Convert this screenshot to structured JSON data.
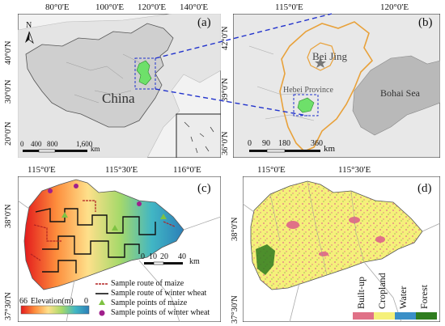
{
  "panel_a": {
    "letter": "(a)",
    "top_lon_labels": [
      "80°0'E",
      "100°0'E",
      "120°0'E",
      "140°0'E"
    ],
    "lat_labels": [
      "40°0'N",
      "30°0'N",
      "20°0'N"
    ],
    "country_label": "China",
    "north_label": "N",
    "scale_ticks": [
      "0",
      "400",
      "800",
      "1,600"
    ],
    "scale_unit": "km"
  },
  "panel_b": {
    "letter": "(b)",
    "top_lon_labels": [
      "115°0'E",
      "120°0'E"
    ],
    "lat_labels": [
      "42°0'N",
      "39°0'N",
      "36°0'N"
    ],
    "capital_label": "Bei Jing",
    "province_label": "Hebei Province",
    "sea_label": "Bohai Sea",
    "scale_ticks": [
      "0",
      "90",
      "180",
      "360"
    ],
    "scale_unit": "km"
  },
  "panel_c": {
    "letter": "(c)",
    "top_lon_labels": [
      "115°0'E",
      "115°30'E",
      "116°0'E"
    ],
    "lat_labels": [
      "38°0'N",
      "37°30'N"
    ],
    "scale_ticks": [
      "0",
      "10",
      "20",
      "40"
    ],
    "scale_unit": "km",
    "elevation_label": "Elevation(m)",
    "elevation_max": "66",
    "elevation_min": "0",
    "legend": [
      {
        "label": "Sample route of maize",
        "color": "#b22222"
      },
      {
        "label": "Sample route of winter wheat",
        "color": "#111111"
      },
      {
        "label": "Sample points of maize",
        "color": "#7ec242"
      },
      {
        "label": "Sample points of winter wheat",
        "color": "#a0208c"
      }
    ]
  },
  "panel_d": {
    "letter": "(d)",
    "top_lon_labels": [
      "115°0'E",
      "115°30'E"
    ],
    "lat_labels": [
      "38°0'N",
      "37°30'N"
    ],
    "legend": [
      {
        "label": "Built-up",
        "color": "#e07187"
      },
      {
        "label": "Cropland",
        "color": "#f5f07a"
      },
      {
        "label": "Water",
        "color": "#3a8fc7"
      },
      {
        "label": "Forest",
        "color": "#2f7d1f"
      }
    ]
  },
  "colors": {
    "study_area_green": "#6ee06a",
    "province_outline": "#e8a13a",
    "connector_blue": "#2233cc",
    "land_gray": "#dcdcdc",
    "sea_gray": "#b9b9b9"
  }
}
